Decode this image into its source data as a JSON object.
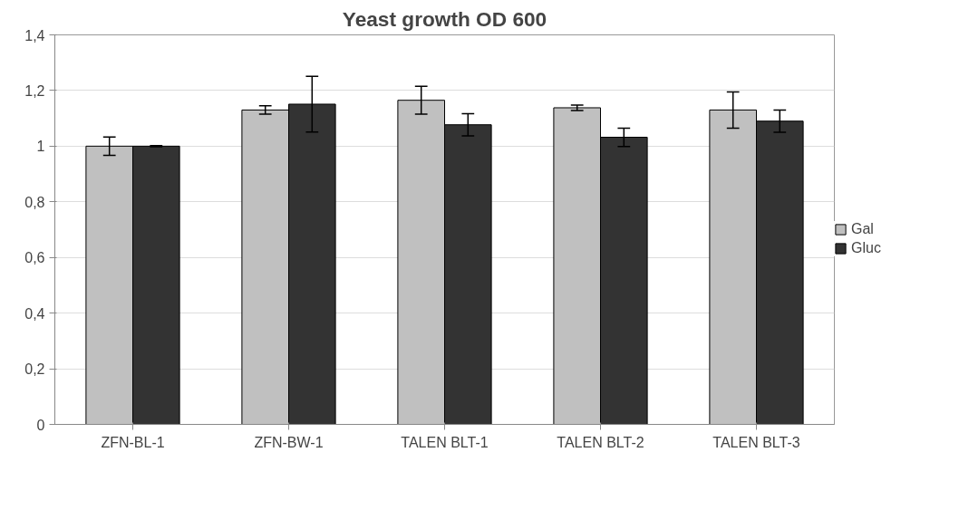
{
  "chart_data": {
    "type": "bar",
    "title": "Yeast growth OD 600",
    "categories": [
      "ZFN-BL-1",
      "ZFN-BW-1",
      "TALEN BLT-1",
      "TALEN BLT-2",
      "TALEN BLT-3"
    ],
    "series": [
      {
        "name": "Gal",
        "color": "#c0c0c0",
        "values": [
          1.0,
          1.13,
          1.165,
          1.138,
          1.13
        ],
        "errors": [
          0.033,
          0.015,
          0.05,
          0.01,
          0.065
        ]
      },
      {
        "name": "Gluc",
        "color": "#333333",
        "values": [
          1.0,
          1.151,
          1.077,
          1.032,
          1.09
        ],
        "errors": [
          0.002,
          0.1,
          0.04,
          0.033,
          0.04
        ]
      }
    ],
    "ylim": [
      0,
      1.4
    ],
    "yticks": [
      {
        "value": 0,
        "label": "0"
      },
      {
        "value": 0.2,
        "label": "0,2"
      },
      {
        "value": 0.4,
        "label": "0,4"
      },
      {
        "value": 0.6,
        "label": "0,6"
      },
      {
        "value": 0.8,
        "label": "0,8"
      },
      {
        "value": 1,
        "label": "1"
      },
      {
        "value": 1.2,
        "label": "1,2"
      },
      {
        "value": 1.4,
        "label": "1,4"
      }
    ],
    "grid": "y",
    "legend": "right"
  }
}
